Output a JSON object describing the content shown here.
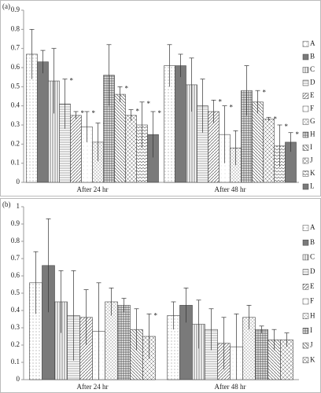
{
  "chart_data": [
    {
      "type": "bar",
      "panel_label": "(a)",
      "categories": [
        "After 24 hr",
        "After 48 hr"
      ],
      "ylim": [
        0,
        0.9
      ],
      "yticks": [
        0,
        0.1,
        0.2,
        0.3,
        0.4,
        0.5,
        0.6,
        0.7,
        0.8,
        0.9
      ],
      "series": [
        {
          "name": "A",
          "values": [
            0.67,
            0.61
          ],
          "errors": [
            0.13,
            0.11
          ],
          "markers": [
            null,
            null
          ]
        },
        {
          "name": "B",
          "values": [
            0.63,
            0.61
          ],
          "errors": [
            0.06,
            0.06
          ],
          "markers": [
            null,
            null
          ]
        },
        {
          "name": "C",
          "values": [
            0.53,
            0.51
          ],
          "errors": [
            0.17,
            0.14
          ],
          "markers": [
            null,
            null
          ]
        },
        {
          "name": "D",
          "values": [
            0.41,
            0.4
          ],
          "errors": [
            0.13,
            0.14
          ],
          "markers": [
            "*",
            null
          ]
        },
        {
          "name": "E",
          "values": [
            0.35,
            0.37
          ],
          "errors": [
            0.02,
            0.06
          ],
          "markers": [
            "*",
            "*"
          ]
        },
        {
          "name": "F",
          "values": [
            0.29,
            0.25
          ],
          "errors": [
            0.08,
            0.15
          ],
          "markers": [
            "*",
            "*"
          ]
        },
        {
          "name": "G",
          "values": [
            0.21,
            0.18
          ],
          "errors": [
            0.1,
            0.09
          ],
          "markers": [
            "*",
            "*"
          ]
        },
        {
          "name": "H",
          "values": [
            0.56,
            0.48
          ],
          "errors": [
            0.16,
            0.13
          ],
          "markers": [
            null,
            null
          ]
        },
        {
          "name": "I",
          "values": [
            0.46,
            0.42
          ],
          "errors": [
            0.04,
            0.06
          ],
          "markers": [
            "*",
            "*"
          ]
        },
        {
          "name": "J",
          "values": [
            0.35,
            0.33
          ],
          "errors": [
            0.03,
            0.01
          ],
          "markers": [
            "*",
            "*"
          ]
        },
        {
          "name": "K",
          "values": [
            0.3,
            0.19
          ],
          "errors": [
            0.12,
            0.11
          ],
          "markers": [
            "*",
            "*"
          ]
        },
        {
          "name": "L",
          "values": [
            0.25,
            0.21
          ],
          "errors": [
            0.12,
            0.05
          ],
          "markers": [
            "*",
            "*"
          ]
        }
      ]
    },
    {
      "type": "bar",
      "panel_label": "(b)",
      "categories": [
        "After 24 hr",
        "After 48 hr"
      ],
      "ylim": [
        0,
        1
      ],
      "yticks": [
        0,
        0.1,
        0.2,
        0.3,
        0.4,
        0.5,
        0.6,
        0.7,
        0.8,
        0.9,
        1
      ],
      "series": [
        {
          "name": "A",
          "values": [
            0.56,
            0.37
          ],
          "errors": [
            0.18,
            0.08
          ],
          "markers": [
            null,
            null
          ]
        },
        {
          "name": "B",
          "values": [
            0.66,
            0.43
          ],
          "errors": [
            0.27,
            0.1
          ],
          "markers": [
            null,
            null
          ]
        },
        {
          "name": "C",
          "values": [
            0.45,
            0.32
          ],
          "errors": [
            0.18,
            0.14
          ],
          "markers": [
            null,
            null
          ]
        },
        {
          "name": "D",
          "values": [
            0.37,
            0.29
          ],
          "errors": [
            0.26,
            0.12
          ],
          "markers": [
            null,
            null
          ]
        },
        {
          "name": "E",
          "values": [
            0.36,
            0.21
          ],
          "errors": [
            0.16,
            0.15
          ],
          "markers": [
            null,
            null
          ]
        },
        {
          "name": "F",
          "values": [
            0.28,
            0.19
          ],
          "errors": [
            0.28,
            0.19
          ],
          "markers": [
            null,
            null
          ]
        },
        {
          "name": "H",
          "values": [
            0.45,
            0.36
          ],
          "errors": [
            0.08,
            0.07
          ],
          "markers": [
            null,
            null
          ]
        },
        {
          "name": "I",
          "values": [
            0.43,
            0.29
          ],
          "errors": [
            0.04,
            0.02
          ],
          "markers": [
            null,
            null
          ]
        },
        {
          "name": "J",
          "values": [
            0.29,
            0.23
          ],
          "errors": [
            0.12,
            0.06
          ],
          "markers": [
            null,
            null
          ]
        },
        {
          "name": "K",
          "values": [
            0.25,
            0.23
          ],
          "errors": [
            0.13,
            0.04
          ],
          "markers": [
            "*",
            null
          ]
        }
      ]
    }
  ]
}
